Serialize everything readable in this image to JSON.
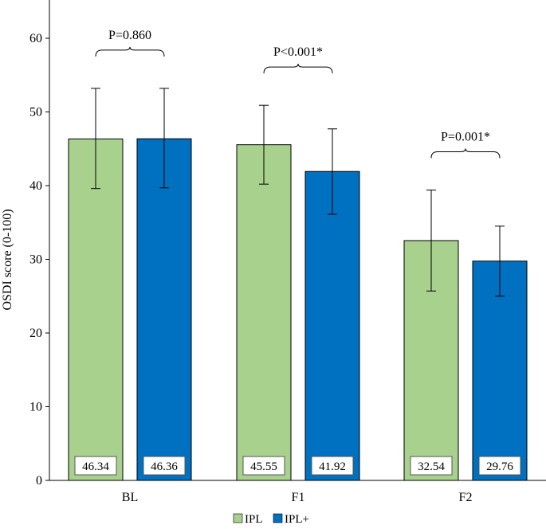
{
  "chart_data": {
    "type": "bar",
    "title": "",
    "xlabel": "",
    "ylabel": "OSDI score (0-100)",
    "ylim": [
      0,
      65
    ],
    "yticks": [
      0,
      10,
      20,
      30,
      40,
      50,
      60
    ],
    "grid": false,
    "categories": [
      "BL",
      "F1",
      "F2"
    ],
    "series": [
      {
        "name": "IPL",
        "color": "#a9d18e",
        "values": [
          46.34,
          45.55,
          32.54
        ],
        "labels": [
          "46.34",
          "45.55",
          "32.54"
        ],
        "error_low": [
          39.6,
          40.2,
          25.7
        ],
        "error_high": [
          53.2,
          50.9,
          39.4
        ]
      },
      {
        "name": "IPL+",
        "color": "#0070c0",
        "values": [
          46.36,
          41.92,
          29.76
        ],
        "labels": [
          "46.36",
          "41.92",
          "29.76"
        ],
        "error_low": [
          39.7,
          36.1,
          25.0
        ],
        "error_high": [
          53.2,
          47.7,
          34.5
        ]
      }
    ],
    "annotations": [
      {
        "category": "BL",
        "text": "P=0.860"
      },
      {
        "category": "F1",
        "text": "P<0.001*"
      },
      {
        "category": "F2",
        "text": "P=0.001*"
      }
    ],
    "legend": {
      "placement": "bottom-center",
      "items": [
        "IPL",
        "IPL+"
      ]
    }
  }
}
